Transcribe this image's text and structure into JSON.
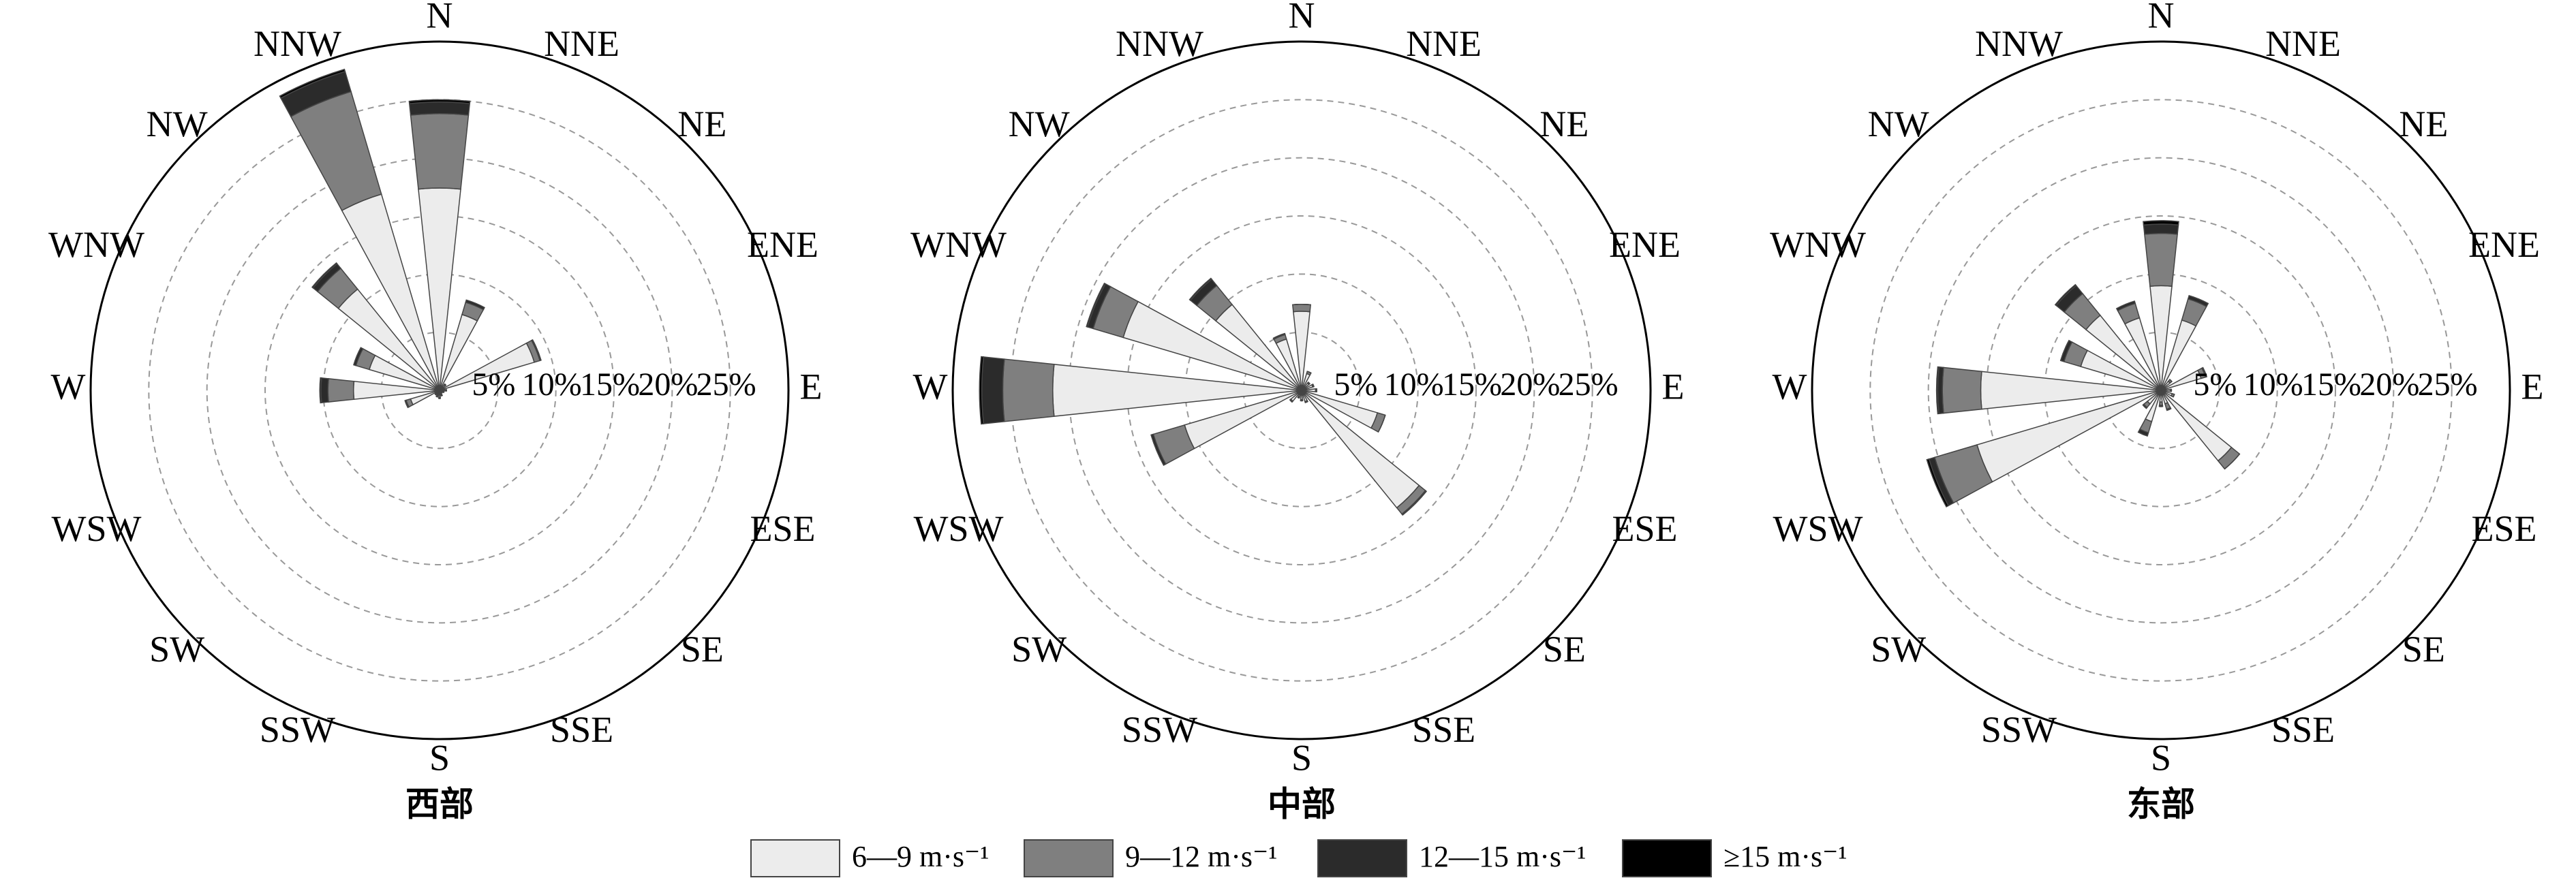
{
  "chart_data": [
    {
      "type": "wind_rose",
      "title": "西部",
      "categories": [
        "N",
        "NNE",
        "NE",
        "ENE",
        "E",
        "ESE",
        "SE",
        "SSE",
        "S",
        "SSW",
        "SW",
        "WSW",
        "W",
        "WNW",
        "NW",
        "NNW"
      ],
      "series": [
        {
          "name": "6—9 m·s⁻¹",
          "color": "#ececec",
          "values": [
            17.4,
            6.8,
            0.6,
            8.5,
            0.5,
            0.4,
            0.3,
            0.4,
            0.6,
            0.5,
            0.4,
            2.6,
            7.4,
            6.3,
            11.2,
            17.6
          ]
        },
        {
          "name": "9—12 m·s⁻¹",
          "color": "#7f7f7f",
          "values": [
            6.4,
            1.1,
            0.1,
            0.5,
            0.1,
            0,
            0,
            0.1,
            0.1,
            0.1,
            0.1,
            0.4,
            2.2,
            1.2,
            2.3,
            9.2
          ]
        },
        {
          "name": "12—15 m·s⁻¹",
          "color": "#2b2b2b",
          "values": [
            1.0,
            0.2,
            0,
            0.1,
            0,
            0,
            0,
            0,
            0,
            0,
            0,
            0.1,
            0.6,
            0.2,
            0.5,
            1.8
          ]
        },
        {
          "name": "≥15 m·s⁻¹",
          "color": "#000000",
          "values": [
            0.2,
            0,
            0,
            0,
            0,
            0,
            0,
            0,
            0,
            0,
            0,
            0,
            0.1,
            0,
            0.1,
            0.2
          ]
        }
      ],
      "rlim": [
        0,
        30
      ],
      "rticks": [
        {
          "value": 5,
          "label": "5%"
        },
        {
          "value": 10,
          "label": "10%"
        },
        {
          "value": 15,
          "label": "15%"
        },
        {
          "value": 20,
          "label": "20%"
        },
        {
          "value": 25,
          "label": "25%"
        }
      ],
      "grid": true
    },
    {
      "type": "wind_rose",
      "title": "中部",
      "categories": [
        "N",
        "NNE",
        "NE",
        "ENE",
        "E",
        "ESE",
        "SE",
        "SSE",
        "S",
        "SSW",
        "SW",
        "WSW",
        "W",
        "WNW",
        "NW",
        "NNW"
      ],
      "series": [
        {
          "name": "6—9 m·s⁻¹",
          "color": "#ececec",
          "values": [
            6.8,
            1.5,
            0.8,
            1.0,
            1.2,
            6.8,
            13.0,
            1.0,
            0.8,
            0.6,
            1.2,
            10.5,
            21.4,
            16.0,
            9.5,
            4.6
          ]
        },
        {
          "name": "9—12 m·s⁻¹",
          "color": "#7f7f7f",
          "values": [
            0.6,
            0.2,
            0.1,
            0.1,
            0.1,
            0.7,
            0.7,
            0.1,
            0.1,
            0.1,
            0.1,
            2.8,
            4.3,
            2.7,
            2.1,
            0.4
          ]
        },
        {
          "name": "12—15 m·s⁻¹",
          "color": "#2b2b2b",
          "values": [
            0,
            0,
            0,
            0,
            0,
            0,
            0.1,
            0,
            0,
            0,
            0,
            0.2,
            1.8,
            0.5,
            0.7,
            0.1
          ]
        },
        {
          "name": "≥15 m·s⁻¹",
          "color": "#000000",
          "values": [
            0,
            0,
            0,
            0,
            0,
            0,
            0,
            0,
            0,
            0,
            0,
            0,
            0.2,
            0.1,
            0.1,
            0
          ]
        }
      ],
      "rlim": [
        0,
        30
      ],
      "rticks": [
        {
          "value": 5,
          "label": "5%"
        },
        {
          "value": 10,
          "label": "10%"
        },
        {
          "value": 15,
          "label": "15%"
        },
        {
          "value": 20,
          "label": "20%"
        },
        {
          "value": 25,
          "label": "25%"
        }
      ],
      "grid": true
    },
    {
      "type": "wind_rose",
      "title": "东部",
      "categories": [
        "N",
        "NNE",
        "NE",
        "ENE",
        "E",
        "ESE",
        "SE",
        "SSE",
        "S",
        "SSW",
        "SW",
        "WSW",
        "W",
        "WNW",
        "NW",
        "NNW"
      ],
      "series": [
        {
          "name": "6—9 m·s⁻¹",
          "color": "#ececec",
          "values": [
            9.0,
            6.3,
            1.0,
            3.6,
            0.8,
            1.0,
            7.8,
            1.2,
            1.0,
            2.8,
            1.5,
            16.5,
            15.5,
            7.2,
            8.3,
            6.5
          ]
        },
        {
          "name": "9—12 m·s⁻¹",
          "color": "#7f7f7f",
          "values": [
            4.5,
            1.9,
            0.2,
            0.4,
            0.1,
            0.2,
            0.9,
            0.5,
            0.3,
            1.0,
            0.4,
            3.8,
            3.3,
            1.5,
            2.4,
            1.3
          ]
        },
        {
          "name": "12—15 m·s⁻¹",
          "color": "#2b2b2b",
          "values": [
            0.8,
            0.3,
            0,
            0.1,
            0,
            0,
            0,
            0.1,
            0.1,
            0.3,
            0.1,
            0.5,
            0.4,
            0.3,
            0.9,
            0.2
          ]
        },
        {
          "name": "≥15 m·s⁻¹",
          "color": "#000000",
          "values": [
            0.3,
            0,
            0,
            0,
            0,
            0,
            0,
            0,
            0,
            0,
            0,
            0.2,
            0.1,
            0,
            0.1,
            0
          ]
        }
      ],
      "rlim": [
        0,
        30
      ],
      "rticks": [
        {
          "value": 5,
          "label": "5%"
        },
        {
          "value": 10,
          "label": "10%"
        },
        {
          "value": 15,
          "label": "15%"
        },
        {
          "value": 20,
          "label": "20%"
        },
        {
          "value": 25,
          "label": "25%"
        }
      ],
      "grid": true
    }
  ]
}
